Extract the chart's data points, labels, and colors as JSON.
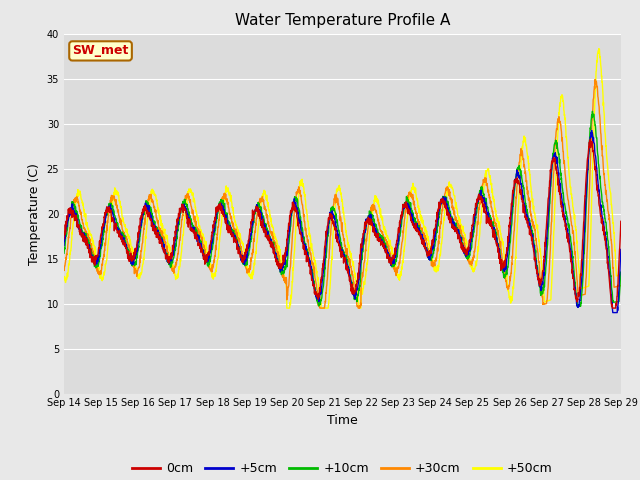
{
  "title": "Water Temperature Profile A",
  "xlabel": "Time",
  "ylabel": "Temperature (C)",
  "ylim": [
    0,
    40
  ],
  "yticks": [
    0,
    5,
    10,
    15,
    20,
    25,
    30,
    35,
    40
  ],
  "date_labels": [
    "Sep 14",
    "Sep 15",
    "Sep 16",
    "Sep 17",
    "Sep 18",
    "Sep 19",
    "Sep 20",
    "Sep 21",
    "Sep 22",
    "Sep 23",
    "Sep 24",
    "Sep 25",
    "Sep 26",
    "Sep 27",
    "Sep 28",
    "Sep 29"
  ],
  "bg_color": "#dcdcdc",
  "fig_color": "#e8e8e8",
  "legend_label": "SW_met",
  "series_colors": [
    "#cc0000",
    "#0000cc",
    "#00bb00",
    "#ff8800",
    "#ffff00"
  ],
  "series_names": [
    "0cm",
    "+5cm",
    "+10cm",
    "+30cm",
    "+50cm"
  ],
  "line_width": 1.0,
  "title_fontsize": 11,
  "axis_fontsize": 9,
  "tick_fontsize": 7,
  "legend_fontsize": 9
}
